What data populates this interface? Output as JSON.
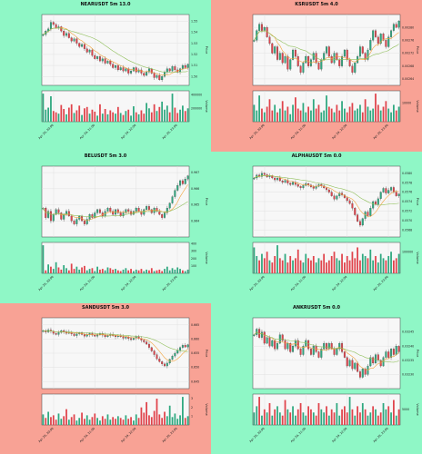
{
  "colors": {
    "bg_green": "#8ff7c6",
    "bg_red": "#f8a295",
    "up": "#2ea87f",
    "down": "#e0434b",
    "ma_fast": "#f2a23a",
    "ma_slow": "#8fbf5a",
    "plot_bg": "#f7f7f7"
  },
  "chart_data": [
    {
      "type": "candlestick",
      "title": "NEARUSDT 5m 13.0",
      "background": "green",
      "ylabel": "Price",
      "volume_label": "Volume",
      "y_ticks": [
        "1.55",
        "1.54",
        "1.53",
        "1.52",
        "1.51",
        "1.50"
      ],
      "ylim": [
        1.492,
        1.556
      ],
      "volume_ticks": [
        "600000",
        "400000",
        "200000"
      ],
      "x_ticks": [
        "Apr 29, 20:00",
        "Apr 29, 21:00",
        "Apr 29, 22:00",
        "Apr 29, 23:00"
      ],
      "closes": [
        1.538,
        1.541,
        1.543,
        1.549,
        1.547,
        1.544,
        1.545,
        1.541,
        1.537,
        1.539,
        1.535,
        1.532,
        1.534,
        1.53,
        1.527,
        1.529,
        1.525,
        1.522,
        1.524,
        1.519,
        1.516,
        1.518,
        1.514,
        1.516,
        1.512,
        1.514,
        1.511,
        1.508,
        1.51,
        1.506,
        1.508,
        1.505,
        1.507,
        1.503,
        1.505,
        1.508,
        1.504,
        1.506,
        1.503,
        1.501,
        1.504,
        1.507,
        1.503,
        1.499,
        1.501,
        1.497,
        1.5,
        1.504,
        1.507,
        1.505,
        1.509,
        1.506,
        1.504,
        1.507,
        1.51,
        1.508,
        1.511
      ],
      "volumes": [
        420000,
        180000,
        210000,
        380000,
        160000,
        140000,
        120000,
        250000,
        190000,
        110000,
        210000,
        260000,
        130000,
        170000,
        240000,
        100000,
        200000,
        220000,
        120000,
        180000,
        150000,
        90000,
        260000,
        120000,
        190000,
        110000,
        170000,
        140000,
        120000,
        220000,
        130000,
        100000,
        160000,
        180000,
        90000,
        230000,
        140000,
        110000,
        170000,
        120000,
        280000,
        200000,
        140000,
        260000,
        160000,
        220000,
        300000,
        180000,
        240000,
        140000,
        420000,
        210000,
        130000,
        180000,
        240000,
        160000,
        200000
      ]
    },
    {
      "type": "candlestick",
      "title": "KSRUSDT 5m 4.0",
      "background": "red",
      "ylabel": "Price",
      "volume_label": "Volume",
      "y_ticks": [
        "0.00280",
        "0.00276",
        "0.00272",
        "0.00268",
        "0.00264"
      ],
      "ylim": [
        0.00262,
        0.00284
      ],
      "volume_ticks": [
        "20000",
        "10000"
      ],
      "x_ticks": [
        "Apr 29, 20:00",
        "Apr 29, 21:00",
        "Apr 29, 22:00",
        "Apr 29, 23:00"
      ],
      "closes": [
        0.00276,
        0.00279,
        0.00281,
        0.00279,
        0.0028,
        0.00277,
        0.00275,
        0.00272,
        0.00274,
        0.0027,
        0.00272,
        0.00269,
        0.00271,
        0.00267,
        0.0027,
        0.00273,
        0.00271,
        0.00268,
        0.00266,
        0.00269,
        0.00271,
        0.00268,
        0.0027,
        0.00272,
        0.00269,
        0.00267,
        0.0027,
        0.00272,
        0.00274,
        0.00271,
        0.00269,
        0.00272,
        0.0027,
        0.00268,
        0.00271,
        0.00273,
        0.0027,
        0.00268,
        0.00266,
        0.00269,
        0.00271,
        0.00274,
        0.00272,
        0.0027,
        0.00273,
        0.00276,
        0.00279,
        0.00277,
        0.00275,
        0.00278,
        0.00276,
        0.00274,
        0.00277,
        0.00279,
        0.00281,
        0.0028,
        0.00282
      ],
      "volumes": [
        9000,
        6000,
        14000,
        7000,
        5000,
        8000,
        12000,
        6000,
        9000,
        5000,
        7000,
        11000,
        6000,
        8000,
        4000,
        9000,
        13000,
        7000,
        6000,
        10000,
        5000,
        8000,
        6000,
        12000,
        7000,
        9000,
        5000,
        6000,
        14000,
        8000,
        7000,
        5000,
        9000,
        6000,
        11000,
        7000,
        5000,
        8000,
        10000,
        6000,
        7000,
        9000,
        5000,
        12000,
        8000,
        6000,
        7000,
        15000,
        9000,
        6000,
        8000,
        11000,
        7000,
        5000,
        9000,
        6000,
        8000
      ]
    },
    {
      "type": "candlestick",
      "title": "BELUSDT 5m 3.0",
      "background": "green",
      "ylabel": "Price",
      "volume_label": "Volume",
      "y_ticks": [
        "0.967",
        "0.966",
        "0.965",
        "0.964"
      ],
      "ylim": [
        0.963,
        0.9674
      ],
      "volume_ticks": [
        "400",
        "300",
        "200",
        "100"
      ],
      "x_ticks": [
        "Apr 29, 20:00",
        "Apr 29, 21:00",
        "Apr 29, 22:00",
        "Apr 29, 23:00"
      ],
      "closes": [
        0.9648,
        0.9642,
        0.9646,
        0.964,
        0.9644,
        0.9647,
        0.9645,
        0.9641,
        0.9644,
        0.9646,
        0.9643,
        0.964,
        0.9638,
        0.9641,
        0.9643,
        0.964,
        0.9638,
        0.9641,
        0.9644,
        0.9642,
        0.9645,
        0.9647,
        0.9645,
        0.9643,
        0.9646,
        0.9648,
        0.9646,
        0.9644,
        0.9647,
        0.9645,
        0.9643,
        0.9645,
        0.9647,
        0.9646,
        0.9644,
        0.9646,
        0.9648,
        0.9646,
        0.9644,
        0.9647,
        0.9649,
        0.9647,
        0.9645,
        0.9648,
        0.9646,
        0.9644,
        0.9642,
        0.9645,
        0.9648,
        0.9651,
        0.9655,
        0.9659,
        0.9662,
        0.9665,
        0.9663,
        0.9666,
        0.9668
      ],
      "volumes": [
        380,
        40,
        120,
        90,
        60,
        150,
        80,
        50,
        110,
        70,
        40,
        130,
        60,
        90,
        50,
        80,
        100,
        40,
        60,
        70,
        30,
        90,
        50,
        60,
        40,
        80,
        70,
        50,
        60,
        40,
        30,
        50,
        70,
        40,
        60,
        30,
        50,
        40,
        60,
        30,
        50,
        40,
        70,
        30,
        40,
        50,
        30,
        60,
        90,
        40,
        70,
        50,
        80,
        60,
        40,
        30,
        50
      ]
    },
    {
      "type": "candlestick",
      "title": "ALPHAUSDT 5m 0.0",
      "background": "green",
      "ylabel": "Price",
      "volume_label": "Volume",
      "y_ticks": [
        "0.0580",
        "0.0578",
        "0.0576",
        "0.0574",
        "0.0572",
        "0.0570",
        "0.0568"
      ],
      "ylim": [
        0.05665,
        0.05815
      ],
      "volume_ticks": [
        "300000",
        "200000",
        "100000"
      ],
      "x_ticks": [
        "Apr 29, 20:00",
        "Apr 29, 21:00",
        "Apr 29, 22:00",
        "Apr 29, 23:00"
      ],
      "closes": [
        0.0579,
        0.05796,
        0.05793,
        0.058,
        0.05797,
        0.05792,
        0.05795,
        0.0579,
        0.05786,
        0.0579,
        0.05784,
        0.05781,
        0.05785,
        0.05779,
        0.05776,
        0.05781,
        0.05776,
        0.05772,
        0.05769,
        0.05774,
        0.05778,
        0.05775,
        0.05771,
        0.05768,
        0.05772,
        0.05776,
        0.05773,
        0.05769,
        0.05765,
        0.0576,
        0.05752,
        0.05745,
        0.05752,
        0.05758,
        0.05754,
        0.05748,
        0.05742,
        0.05736,
        0.05726,
        0.05712,
        0.05698,
        0.0569,
        0.05704,
        0.05718,
        0.0571,
        0.05726,
        0.0574,
        0.05734,
        0.05746,
        0.0576,
        0.05768,
        0.05758,
        0.05764,
        0.0577,
        0.0576,
        0.05752,
        0.05756
      ],
      "volumes": [
        120000,
        80000,
        60000,
        90000,
        70000,
        100000,
        60000,
        50000,
        80000,
        130000,
        70000,
        60000,
        90000,
        50000,
        80000,
        60000,
        70000,
        110000,
        60000,
        50000,
        90000,
        70000,
        60000,
        80000,
        50000,
        70000,
        60000,
        90000,
        50000,
        60000,
        80000,
        100000,
        70000,
        60000,
        90000,
        50000,
        80000,
        60000,
        100000,
        70000,
        120000,
        60000,
        90000,
        80000,
        70000,
        110000,
        60000,
        80000,
        50000,
        90000,
        70000,
        60000,
        80000,
        100000,
        60000,
        70000,
        90000
      ]
    },
    {
      "type": "candlestick",
      "title": "SANDUSDT 5m 3.0",
      "background": "red",
      "ylabel": "Price",
      "volume_label": "Volume",
      "y_ticks": [
        "0.665",
        "0.660",
        "0.655",
        "0.650",
        "0.645"
      ],
      "ylim": [
        0.6425,
        0.6675
      ],
      "volume_ticks": [
        "3",
        "2",
        "1"
      ],
      "x_ticks": [
        "Apr 29, 20:00",
        "Apr 29, 21:00",
        "Apr 29, 22:00",
        "Apr 29, 23:00"
      ],
      "closes": [
        0.663,
        0.6625,
        0.6632,
        0.6628,
        0.662,
        0.6616,
        0.6623,
        0.663,
        0.6626,
        0.662,
        0.6625,
        0.6618,
        0.6612,
        0.6618,
        0.6622,
        0.6616,
        0.661,
        0.6615,
        0.662,
        0.6614,
        0.661,
        0.6616,
        0.662,
        0.6614,
        0.6608,
        0.6612,
        0.6617,
        0.6612,
        0.6608,
        0.6612,
        0.6608,
        0.6603,
        0.6607,
        0.6602,
        0.6598,
        0.6603,
        0.6608,
        0.6602,
        0.6596,
        0.659,
        0.6582,
        0.657,
        0.6558,
        0.6545,
        0.653,
        0.652,
        0.6512,
        0.6505,
        0.6515,
        0.6528,
        0.654,
        0.655,
        0.656,
        0.657,
        0.6578,
        0.6572,
        0.658
      ],
      "volumes": [
        1.2,
        0.8,
        1.5,
        0.9,
        1.1,
        0.6,
        1.3,
        0.7,
        1.0,
        1.8,
        0.6,
        0.9,
        1.2,
        0.5,
        0.8,
        1.4,
        0.7,
        1.1,
        0.6,
        0.9,
        1.3,
        0.8,
        0.5,
        1.0,
        0.7,
        1.2,
        0.6,
        0.9,
        0.7,
        1.0,
        0.8,
        0.6,
        1.1,
        0.7,
        0.9,
        0.5,
        1.2,
        0.8,
        2.0,
        1.4,
        2.6,
        1.1,
        0.9,
        1.6,
        3.0,
        1.2,
        0.8,
        1.5,
        1.0,
        2.2,
        0.9,
        1.3,
        0.7,
        1.1,
        3.2,
        0.8,
        1.0
      ]
    },
    {
      "type": "candlestick",
      "title": "ANKRUSDT 5m 0.0",
      "background": "green",
      "ylabel": "Price",
      "volume_label": "Volume",
      "y_ticks": [
        "0.03245",
        "0.03240",
        "0.03235",
        "0.03230"
      ],
      "ylim": [
        0.03225,
        0.0325
      ],
      "volume_ticks": [
        "10000",
        "5000"
      ],
      "x_ticks": [
        "Apr 29, 20:00",
        "Apr 29, 21:00",
        "Apr 29, 22:00",
        "Apr 29, 23:00"
      ],
      "closes": [
        0.03244,
        0.03246,
        0.03243,
        0.03245,
        0.03241,
        0.03243,
        0.0324,
        0.03242,
        0.03239,
        0.03241,
        0.03244,
        0.03242,
        0.03239,
        0.03241,
        0.03238,
        0.0324,
        0.03242,
        0.03239,
        0.03237,
        0.0324,
        0.03242,
        0.03239,
        0.03237,
        0.0324,
        0.03238,
        0.03236,
        0.03239,
        0.03241,
        0.03239,
        0.03241,
        0.03239,
        0.03237,
        0.03239,
        0.03241,
        0.03238,
        0.03236,
        0.03233,
        0.03235,
        0.03232,
        0.03234,
        0.03231,
        0.03229,
        0.03232,
        0.0323,
        0.03233,
        0.03236,
        0.03234,
        0.03237,
        0.03235,
        0.03233,
        0.03236,
        0.03238,
        0.03236,
        0.03239,
        0.03237,
        0.0324,
        0.03238
      ],
      "volumes": [
        4000,
        6000,
        9000,
        3000,
        5000,
        4000,
        7000,
        3000,
        5000,
        6000,
        4000,
        3000,
        8000,
        5000,
        4000,
        6000,
        3000,
        5000,
        7000,
        4000,
        3000,
        6000,
        5000,
        4000,
        3000,
        7000,
        5000,
        4000,
        6000,
        3000,
        5000,
        4000,
        7000,
        3000,
        5000,
        6000,
        4000,
        9000,
        5000,
        3000,
        6000,
        4000,
        7000,
        5000,
        3000,
        4000,
        6000,
        5000,
        3000,
        4000,
        7000,
        5000,
        6000,
        4000,
        8000,
        3000,
        5000
      ]
    }
  ]
}
